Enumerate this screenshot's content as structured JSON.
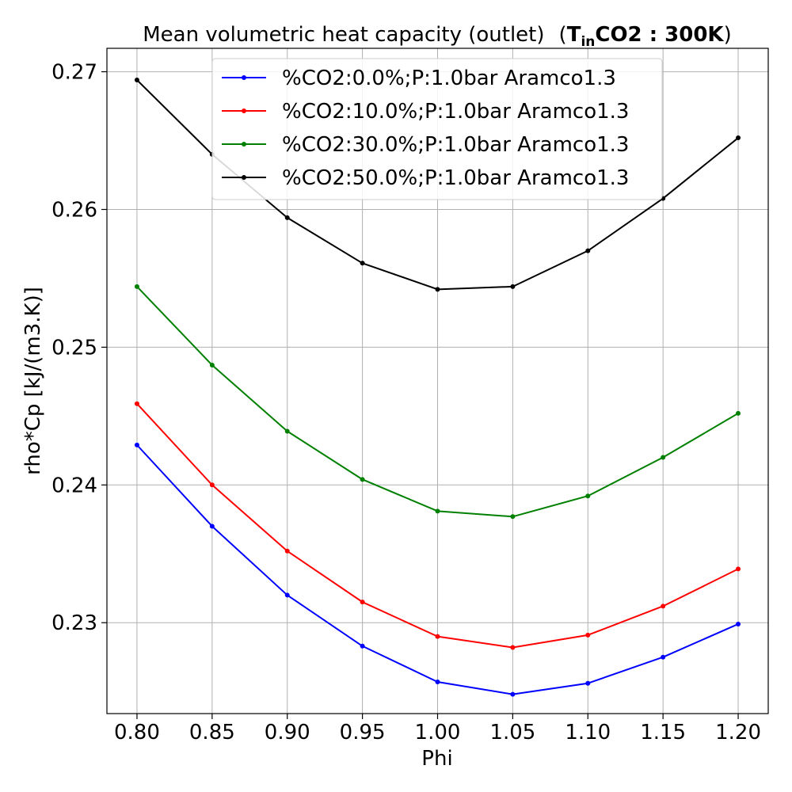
{
  "chart_data": {
    "type": "line",
    "title_main": "Mean volumetric heat capacity (outlet)",
    "title_annotation_prefix": "(",
    "title_annotation_T": "T",
    "title_annotation_sub": "in",
    "title_annotation_bold": "CO2 : 300K",
    "title_annotation_suffix": ")",
    "xlabel": "Phi",
    "ylabel": "rho*Cp [kJ/(m3.K)]",
    "x": [
      0.8,
      0.85,
      0.9,
      0.95,
      1.0,
      1.05,
      1.1,
      1.15,
      1.2
    ],
    "x_tick_labels": [
      "0.80",
      "0.85",
      "0.90",
      "0.95",
      "1.00",
      "1.05",
      "1.10",
      "1.15",
      "1.20"
    ],
    "y_ticks": [
      0.23,
      0.24,
      0.25,
      0.26,
      0.27
    ],
    "y_tick_labels": [
      "0.23",
      "0.24",
      "0.25",
      "0.26",
      "0.27"
    ],
    "xlim": [
      0.78,
      1.22
    ],
    "ylim": [
      0.2234,
      0.2717
    ],
    "grid": true,
    "legend_position": "top-center",
    "series": [
      {
        "name": "%CO2:0.0%;P:1.0bar Aramco1.3",
        "color": "#0000ff",
        "values": [
          0.2429,
          0.237,
          0.232,
          0.2283,
          0.2257,
          0.2248,
          0.2256,
          0.2275,
          0.2299
        ]
      },
      {
        "name": "%CO2:10.0%;P:1.0bar Aramco1.3",
        "color": "#ff0000",
        "values": [
          0.2459,
          0.24,
          0.2352,
          0.2315,
          0.229,
          0.2282,
          0.2291,
          0.2312,
          0.2339
        ]
      },
      {
        "name": "%CO2:30.0%;P:1.0bar Aramco1.3",
        "color": "#008000",
        "values": [
          0.2544,
          0.2487,
          0.2439,
          0.2404,
          0.2381,
          0.2377,
          0.2392,
          0.242,
          0.2452
        ]
      },
      {
        "name": "%CO2:50.0%;P:1.0bar Aramco1.3",
        "color": "#000000",
        "values": [
          0.2694,
          0.264,
          0.2594,
          0.2561,
          0.2542,
          0.2544,
          0.257,
          0.2608,
          0.2652
        ]
      }
    ]
  }
}
